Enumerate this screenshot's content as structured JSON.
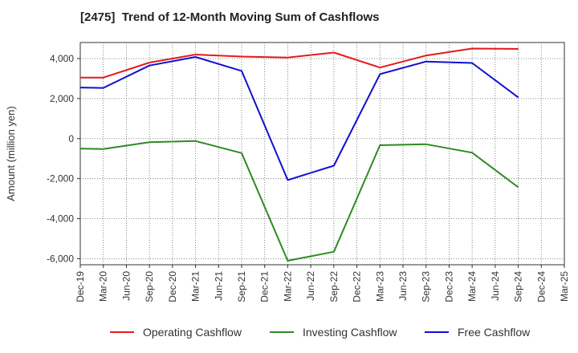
{
  "chart_data": {
    "type": "line",
    "title": "[2475]  Trend of 12-Month Moving Sum of Cashflows",
    "xlabel": "",
    "ylabel": "Amount (million yen)",
    "categories": [
      "Dec-19",
      "Mar-20",
      "Jun-20",
      "Sep-20",
      "Dec-20",
      "Mar-21",
      "Jun-21",
      "Sep-21",
      "Dec-21",
      "Mar-22",
      "Jun-22",
      "Sep-22",
      "Dec-22",
      "Mar-23",
      "Jun-23",
      "Sep-23",
      "Dec-23",
      "Mar-24",
      "Jun-24",
      "Sep-24",
      "Dec-24",
      "Mar-25"
    ],
    "yticks": [
      4000,
      2000,
      0,
      -2000,
      -4000,
      -6000
    ],
    "ytick_labels": [
      "4,000",
      "2,000",
      "0",
      "-2,000",
      "-4,000",
      "-6,000"
    ],
    "ylim": [
      -6300,
      4800
    ],
    "grid": true,
    "legend_position": "bottom",
    "series": [
      {
        "name": "Operating Cashflow",
        "color": "#e41a1c",
        "points": [
          [
            0,
            3050
          ],
          [
            1,
            3050
          ],
          [
            3,
            3800
          ],
          [
            5,
            4200
          ],
          [
            7,
            4100
          ],
          [
            9,
            4050
          ],
          [
            11,
            4300
          ],
          [
            13,
            3550
          ],
          [
            15,
            4150
          ],
          [
            17,
            4500
          ],
          [
            19,
            4480
          ]
        ]
      },
      {
        "name": "Investing Cashflow",
        "color": "#2e8b22",
        "points": [
          [
            0,
            -500
          ],
          [
            1,
            -520
          ],
          [
            3,
            -180
          ],
          [
            5,
            -120
          ],
          [
            7,
            -720
          ],
          [
            9,
            -6100
          ],
          [
            11,
            -5650
          ],
          [
            13,
            -330
          ],
          [
            15,
            -280
          ],
          [
            17,
            -700
          ],
          [
            19,
            -2430
          ]
        ]
      },
      {
        "name": "Free Cashflow",
        "color": "#1010d0",
        "points": [
          [
            0,
            2550
          ],
          [
            1,
            2530
          ],
          [
            3,
            3650
          ],
          [
            5,
            4080
          ],
          [
            7,
            3380
          ],
          [
            9,
            -2070
          ],
          [
            11,
            -1350
          ],
          [
            13,
            3220
          ],
          [
            15,
            3850
          ],
          [
            17,
            3780
          ],
          [
            19,
            2060
          ]
        ]
      }
    ]
  }
}
